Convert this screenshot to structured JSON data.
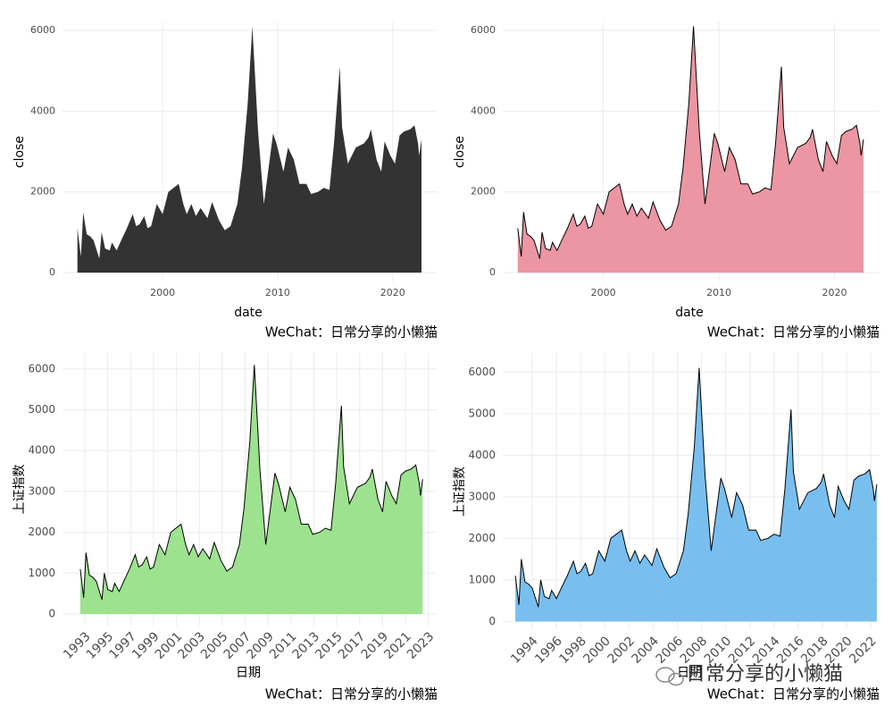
{
  "chart_data": [
    {
      "type": "area",
      "xlabel": "date",
      "ylabel": "close",
      "caption": "WeChat：日常分享的小懒猫",
      "color": "#333333",
      "grid": true,
      "xlim": [
        1991.3,
        2023.9
      ],
      "ylim": [
        -220,
        6200
      ],
      "xticks": [
        2000,
        2010,
        2020
      ],
      "yticks": [
        0,
        2000,
        4000,
        6000
      ],
      "x": [
        1992.6,
        1992.9,
        1993.1,
        1993.4,
        1993.7,
        1994.0,
        1994.5,
        1994.7,
        1995.0,
        1995.4,
        1995.6,
        1996.0,
        1996.4,
        1996.9,
        1997.4,
        1997.7,
        1998.0,
        1998.4,
        1998.7,
        1999.0,
        1999.5,
        2000.0,
        2000.5,
        2001.4,
        2001.8,
        2002.1,
        2002.5,
        2002.9,
        2003.3,
        2003.9,
        2004.3,
        2004.9,
        2005.4,
        2005.9,
        2006.5,
        2006.9,
        2007.4,
        2007.8,
        2008.3,
        2008.8,
        2009.6,
        2009.9,
        2010.5,
        2010.9,
        2011.4,
        2011.9,
        2012.5,
        2012.9,
        2013.5,
        2014.0,
        2014.5,
        2014.9,
        2015.4,
        2015.6,
        2016.1,
        2016.8,
        2017.5,
        2017.9,
        2018.1,
        2018.6,
        2019.0,
        2019.3,
        2019.8,
        2020.2,
        2020.6,
        2021.0,
        2021.5,
        2021.9,
        2022.2,
        2022.3,
        2022.5
      ],
      "values": [
        1100,
        400,
        1500,
        950,
        900,
        800,
        350,
        1000,
        600,
        550,
        750,
        550,
        800,
        1100,
        1450,
        1150,
        1200,
        1400,
        1100,
        1150,
        1700,
        1450,
        2000,
        2200,
        1700,
        1450,
        1700,
        1400,
        1600,
        1350,
        1750,
        1300,
        1050,
        1150,
        1700,
        2600,
        4200,
        6100,
        3500,
        1700,
        3450,
        3200,
        2500,
        3100,
        2800,
        2200,
        2200,
        1950,
        2000,
        2100,
        2050,
        3200,
        5100,
        3600,
        2700,
        3100,
        3200,
        3350,
        3550,
        2800,
        2500,
        3250,
        2900,
        2700,
        3400,
        3500,
        3550,
        3650,
        3200,
        2900,
        3300
      ]
    },
    {
      "type": "area",
      "xlabel": "date",
      "ylabel": "close",
      "caption": "WeChat：日常分享的小懒猫",
      "color": "#eb96a2",
      "line_color": "#000000",
      "grid": true,
      "xlim": [
        1991.3,
        2023.9
      ],
      "ylim": [
        -220,
        6200
      ],
      "xticks": [
        2000,
        2010,
        2020
      ],
      "yticks": [
        0,
        2000,
        4000,
        6000
      ],
      "x": [
        1992.6,
        1992.9,
        1993.1,
        1993.4,
        1993.7,
        1994.0,
        1994.5,
        1994.7,
        1995.0,
        1995.4,
        1995.6,
        1996.0,
        1996.4,
        1996.9,
        1997.4,
        1997.7,
        1998.0,
        1998.4,
        1998.7,
        1999.0,
        1999.5,
        2000.0,
        2000.5,
        2001.4,
        2001.8,
        2002.1,
        2002.5,
        2002.9,
        2003.3,
        2003.9,
        2004.3,
        2004.9,
        2005.4,
        2005.9,
        2006.5,
        2006.9,
        2007.4,
        2007.8,
        2008.3,
        2008.8,
        2009.6,
        2009.9,
        2010.5,
        2010.9,
        2011.4,
        2011.9,
        2012.5,
        2012.9,
        2013.5,
        2014.0,
        2014.5,
        2014.9,
        2015.4,
        2015.6,
        2016.1,
        2016.8,
        2017.5,
        2017.9,
        2018.1,
        2018.6,
        2019.0,
        2019.3,
        2019.8,
        2020.2,
        2020.6,
        2021.0,
        2021.5,
        2021.9,
        2022.2,
        2022.3,
        2022.5
      ],
      "values": [
        1100,
        400,
        1500,
        950,
        900,
        800,
        350,
        1000,
        600,
        550,
        750,
        550,
        800,
        1100,
        1450,
        1150,
        1200,
        1400,
        1100,
        1150,
        1700,
        1450,
        2000,
        2200,
        1700,
        1450,
        1700,
        1400,
        1600,
        1350,
        1750,
        1300,
        1050,
        1150,
        1700,
        2600,
        4200,
        6100,
        3500,
        1700,
        3450,
        3200,
        2500,
        3100,
        2800,
        2200,
        2200,
        1950,
        2000,
        2100,
        2050,
        3200,
        5100,
        3600,
        2700,
        3100,
        3200,
        3350,
        3550,
        2800,
        2500,
        3250,
        2900,
        2700,
        3400,
        3500,
        3550,
        3650,
        3200,
        2900,
        3300
      ]
    },
    {
      "type": "area",
      "xlabel": "日期",
      "ylabel": "上证指数",
      "caption": "WeChat：日常分享的小懒猫",
      "color": "#9de28f",
      "line_color": "#000000",
      "grid": true,
      "xlim": [
        1991.05,
        2023.8
      ],
      "ylim": [
        -285,
        6390
      ],
      "xticks": [
        1993,
        1995,
        1997,
        1999,
        2001,
        2003,
        2005,
        2007,
        2009,
        2011,
        2013,
        2015,
        2017,
        2019,
        2021,
        2023
      ],
      "yticks": [
        0,
        1000,
        2000,
        3000,
        4000,
        5000,
        6000
      ],
      "x": [
        1992.6,
        1992.9,
        1993.1,
        1993.4,
        1993.7,
        1994.0,
        1994.5,
        1994.7,
        1995.0,
        1995.4,
        1995.6,
        1996.0,
        1996.4,
        1996.9,
        1997.4,
        1997.7,
        1998.0,
        1998.4,
        1998.7,
        1999.0,
        1999.5,
        2000.0,
        2000.5,
        2001.4,
        2001.8,
        2002.1,
        2002.5,
        2002.9,
        2003.3,
        2003.9,
        2004.3,
        2004.9,
        2005.4,
        2005.9,
        2006.5,
        2006.9,
        2007.4,
        2007.8,
        2008.3,
        2008.8,
        2009.6,
        2009.9,
        2010.5,
        2010.9,
        2011.4,
        2011.9,
        2012.5,
        2012.9,
        2013.5,
        2014.0,
        2014.5,
        2014.9,
        2015.4,
        2015.6,
        2016.1,
        2016.8,
        2017.5,
        2017.9,
        2018.1,
        2018.6,
        2019.0,
        2019.3,
        2019.8,
        2020.2,
        2020.6,
        2021.0,
        2021.5,
        2021.9,
        2022.2,
        2022.3,
        2022.5
      ],
      "values": [
        1100,
        400,
        1500,
        950,
        900,
        800,
        350,
        1000,
        600,
        550,
        750,
        550,
        800,
        1100,
        1450,
        1150,
        1200,
        1400,
        1100,
        1150,
        1700,
        1450,
        2000,
        2200,
        1700,
        1450,
        1700,
        1400,
        1600,
        1350,
        1750,
        1300,
        1050,
        1150,
        1700,
        2600,
        4200,
        6100,
        3500,
        1700,
        3450,
        3200,
        2500,
        3100,
        2800,
        2200,
        2200,
        1950,
        2000,
        2100,
        2050,
        3200,
        5100,
        3600,
        2700,
        3100,
        3200,
        3350,
        3550,
        2800,
        2500,
        3250,
        2900,
        2700,
        3400,
        3500,
        3550,
        3650,
        3200,
        2900,
        3300
      ]
    },
    {
      "type": "area",
      "xlabel": "日期",
      "ylabel": "上证指数",
      "caption": "WeChat：日常分享的小懒猫",
      "color": "#78bff0",
      "line_color": "#000000",
      "grid": true,
      "xlim": [
        1991.56,
        2022.73
      ],
      "ylim": [
        -208,
        6460
      ],
      "xticks": [
        1994,
        1996,
        1998,
        2000,
        2002,
        2004,
        2006,
        2008,
        2010,
        2012,
        2014,
        2016,
        2018,
        2020,
        2022
      ],
      "yticks": [
        0,
        1000,
        2000,
        3000,
        4000,
        5000,
        6000
      ],
      "x": [
        1992.6,
        1992.9,
        1993.1,
        1993.4,
        1993.7,
        1994.0,
        1994.5,
        1994.7,
        1995.0,
        1995.4,
        1995.6,
        1996.0,
        1996.4,
        1996.9,
        1997.4,
        1997.7,
        1998.0,
        1998.4,
        1998.7,
        1999.0,
        1999.5,
        2000.0,
        2000.5,
        2001.4,
        2001.8,
        2002.1,
        2002.5,
        2002.9,
        2003.3,
        2003.9,
        2004.3,
        2004.9,
        2005.4,
        2005.9,
        2006.5,
        2006.9,
        2007.4,
        2007.8,
        2008.3,
        2008.8,
        2009.6,
        2009.9,
        2010.5,
        2010.9,
        2011.4,
        2011.9,
        2012.5,
        2012.9,
        2013.5,
        2014.0,
        2014.5,
        2014.9,
        2015.4,
        2015.6,
        2016.1,
        2016.8,
        2017.5,
        2017.9,
        2018.1,
        2018.6,
        2019.0,
        2019.3,
        2019.8,
        2020.2,
        2020.6,
        2021.0,
        2021.5,
        2021.9,
        2022.2,
        2022.3,
        2022.5
      ],
      "values": [
        1100,
        400,
        1500,
        950,
        900,
        800,
        350,
        1000,
        600,
        550,
        750,
        550,
        800,
        1100,
        1450,
        1150,
        1200,
        1400,
        1100,
        1150,
        1700,
        1450,
        2000,
        2200,
        1700,
        1450,
        1700,
        1400,
        1600,
        1350,
        1750,
        1300,
        1050,
        1150,
        1700,
        2600,
        4200,
        6100,
        3500,
        1700,
        3450,
        3200,
        2500,
        3100,
        2800,
        2200,
        2200,
        1950,
        2000,
        2100,
        2050,
        3200,
        5100,
        3600,
        2700,
        3100,
        3200,
        3350,
        3550,
        2800,
        2500,
        3250,
        2900,
        2700,
        3400,
        3500,
        3550,
        3650,
        3200,
        2900,
        3300
      ]
    }
  ],
  "watermark": "日常分享的小懒猫"
}
